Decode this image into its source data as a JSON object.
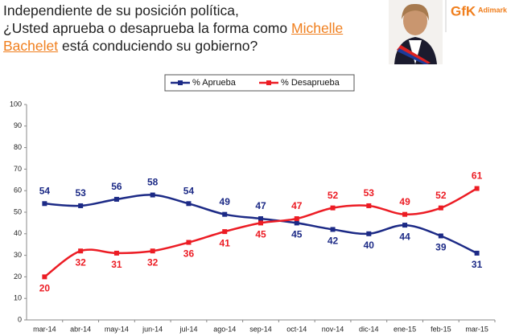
{
  "header": {
    "title": [
      "Independiente de su posición política,",
      "¿Usted aprueba o desaprueba la forma como",
      "está conduciendo su gobierno?"
    ],
    "name": [
      "Michelle",
      "Bachelet"
    ],
    "logo": [
      "GfK",
      "Adimark"
    ]
  },
  "chart_data": {
    "type": "line",
    "categories": [
      "mar-14",
      "abr-14",
      "may-14",
      "jun-14",
      "jul-14",
      "ago-14",
      "sep-14",
      "oct-14",
      "nov-14",
      "dic-14",
      "ene-15",
      "feb-15",
      "mar-15"
    ],
    "series": [
      {
        "name": "% Aprueba",
        "color": "#1c2a86",
        "values": [
          54,
          53,
          56,
          58,
          54,
          49,
          47,
          45,
          42,
          40,
          44,
          39,
          31
        ]
      },
      {
        "name": "% Desaprueba",
        "color": "#ec1c24",
        "values": [
          20,
          32,
          31,
          32,
          36,
          41,
          45,
          47,
          52,
          53,
          49,
          52,
          61
        ]
      }
    ],
    "ylim": [
      0,
      100
    ],
    "yticks": [
      0,
      10,
      20,
      30,
      40,
      50,
      60,
      70,
      80,
      90,
      100
    ],
    "grid": false,
    "legend": "top"
  }
}
